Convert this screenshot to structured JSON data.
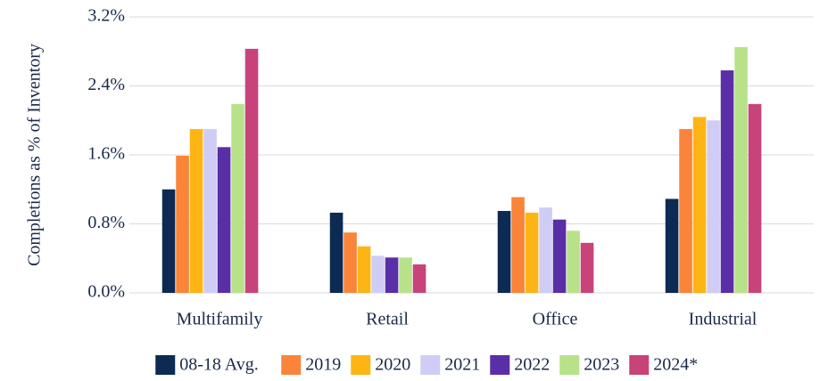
{
  "chart_data": {
    "type": "bar",
    "y_label": "Completions as % of Inventory",
    "categories": [
      "Multifamily",
      "Retail",
      "Office",
      "Industrial"
    ],
    "series": [
      {
        "name": "08-18 Avg.",
        "color": "#0d2a52",
        "values": [
          1.2,
          0.93,
          0.95,
          1.09
        ]
      },
      {
        "name": "2019",
        "color": "#f9843a",
        "values": [
          1.59,
          0.7,
          1.11,
          1.9
        ]
      },
      {
        "name": "2020",
        "color": "#fdb515",
        "values": [
          1.9,
          0.54,
          0.93,
          2.04
        ]
      },
      {
        "name": "2021",
        "color": "#cfcdf5",
        "values": [
          1.9,
          0.43,
          0.99,
          2.0
        ]
      },
      {
        "name": "2022",
        "color": "#5a2ea6",
        "values": [
          1.69,
          0.41,
          0.85,
          2.58
        ]
      },
      {
        "name": "2023",
        "color": "#b8e28a",
        "values": [
          2.19,
          0.41,
          0.72,
          2.85
        ]
      },
      {
        "name": "2024*",
        "color": "#c8437a",
        "values": [
          2.83,
          0.33,
          0.58,
          2.19
        ]
      }
    ],
    "ylim": [
      0,
      3.2
    ],
    "yticks": [
      {
        "value": 0,
        "label": "0.0%"
      },
      {
        "value": 0.8,
        "label": "0.8%"
      },
      {
        "value": 1.6,
        "label": "1.6%"
      },
      {
        "value": 2.4,
        "label": "2.4%"
      },
      {
        "value": 3.2,
        "label": "3.2%"
      }
    ],
    "grid": true,
    "legend": "bottom"
  }
}
